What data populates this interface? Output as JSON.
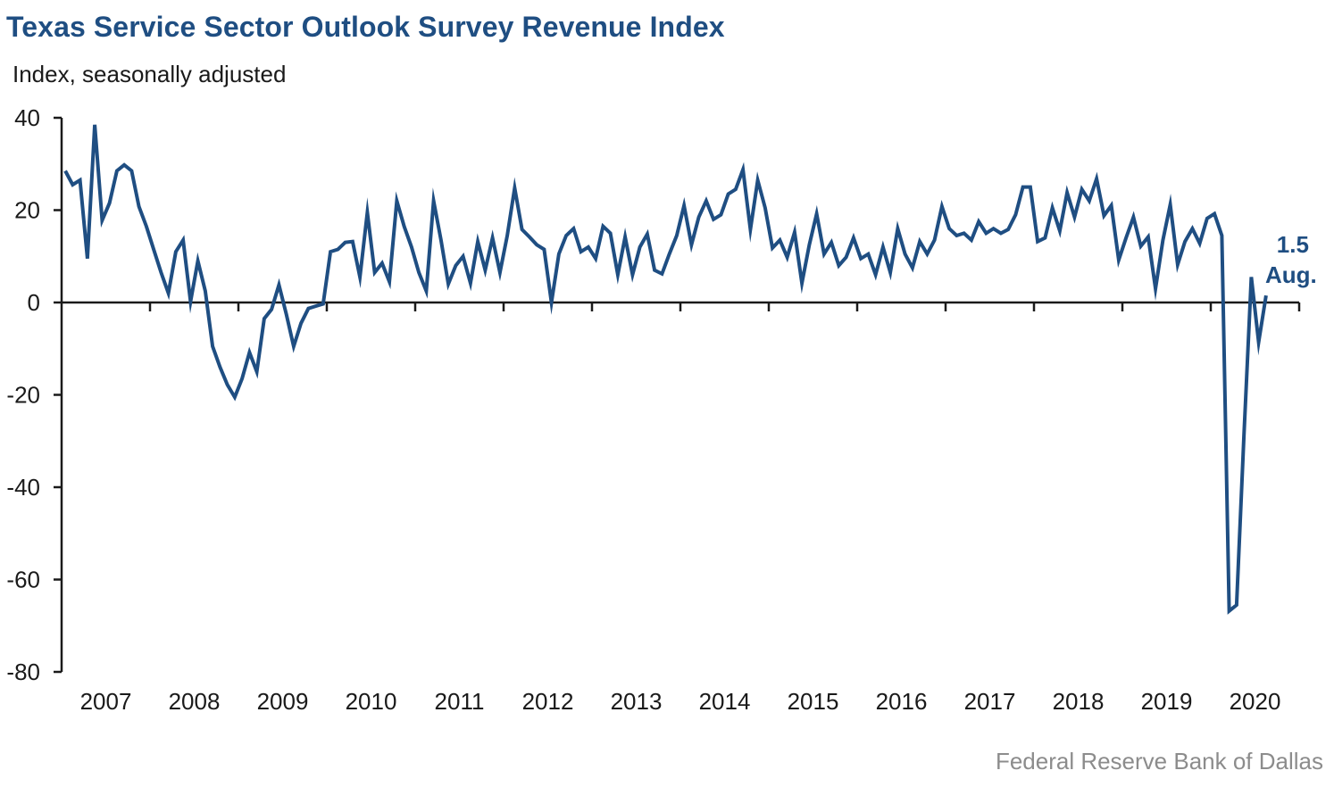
{
  "title": "Texas Service Sector Outlook Survey Revenue Index",
  "subtitle": "Index, seasonally adjusted",
  "source": "Federal Reserve Bank of Dallas",
  "colors": {
    "series": "#1f4e82",
    "title": "#1f4e82",
    "axis": "#1a1a1a",
    "source": "#8c8c8c"
  },
  "chart_data": {
    "type": "line",
    "title": "Texas Service Sector Outlook Survey Revenue Index",
    "xlabel": "",
    "ylabel": "Index, seasonally adjusted",
    "ylim": [
      -80,
      40
    ],
    "yticks": [
      40,
      20,
      0,
      -20,
      -40,
      -60,
      -80
    ],
    "xticks": [
      "2007",
      "2008",
      "2009",
      "2010",
      "2011",
      "2012",
      "2013",
      "2014",
      "2015",
      "2016",
      "2017",
      "2018",
      "2019",
      "2020"
    ],
    "x_start": "2007-01",
    "x_end": "2020-08",
    "frequency": "monthly",
    "grid": false,
    "legend": "none",
    "annotation": {
      "value_label": "1.5",
      "period_label": "Aug.",
      "position": "end-of-series"
    },
    "series": [
      {
        "name": "Revenue Index",
        "values": [
          28.5,
          25.5,
          26.5,
          9.5,
          38.5,
          17.8,
          21.5,
          28.5,
          29.8,
          28.5,
          20.8,
          16.5,
          11.5,
          6.5,
          2.0,
          11.0,
          13.5,
          0.2,
          9.0,
          2.5,
          -9.5,
          -14.0,
          -17.8,
          -20.5,
          -16.5,
          -10.8,
          -15.0,
          -3.5,
          -1.5,
          3.8,
          -2.5,
          -9.5,
          -4.5,
          -1.3,
          -0.8,
          -0.3,
          11.0,
          11.5,
          13.0,
          13.2,
          5.5,
          19.5,
          6.5,
          8.5,
          4.5,
          22.0,
          16.5,
          12.0,
          6.5,
          2.5,
          22.0,
          13.5,
          4.0,
          8.0,
          10.0,
          4.2,
          13.2,
          7.0,
          14.0,
          6.5,
          14.5,
          24.8,
          15.8,
          14.2,
          12.5,
          11.5,
          0.0,
          10.5,
          14.5,
          16.0,
          11.0,
          12.0,
          9.5,
          16.5,
          15.0,
          6.0,
          14.2,
          6.0,
          12.0,
          14.8,
          7.0,
          6.2,
          10.5,
          14.5,
          21.0,
          12.5,
          18.5,
          22.0,
          18.0,
          19.0,
          23.5,
          24.5,
          28.8,
          15.8,
          26.5,
          20.5,
          11.8,
          13.5,
          9.8,
          15.2,
          4.2,
          12.5,
          19.2,
          10.5,
          13.0,
          8.0,
          9.8,
          14.0,
          9.5,
          10.5,
          6.0,
          12.0,
          6.5,
          16.0,
          10.5,
          7.5,
          13.2,
          10.5,
          13.5,
          20.8,
          16.0,
          14.5,
          15.0,
          13.5,
          17.5,
          15.0,
          16.0,
          15.0,
          15.8,
          19.0,
          25.0,
          25.0,
          13.2,
          14.0,
          20.5,
          15.5,
          23.8,
          18.5,
          24.5,
          22.0,
          26.8,
          18.8,
          21.0,
          9.2,
          14.0,
          18.5,
          12.2,
          14.2,
          3.0,
          13.5,
          21.2,
          8.2,
          13.2,
          16.0,
          12.8,
          18.2,
          19.2,
          14.5,
          -66.8,
          -65.5,
          -29.0,
          5.5,
          -8.6,
          1.5
        ]
      }
    ]
  }
}
